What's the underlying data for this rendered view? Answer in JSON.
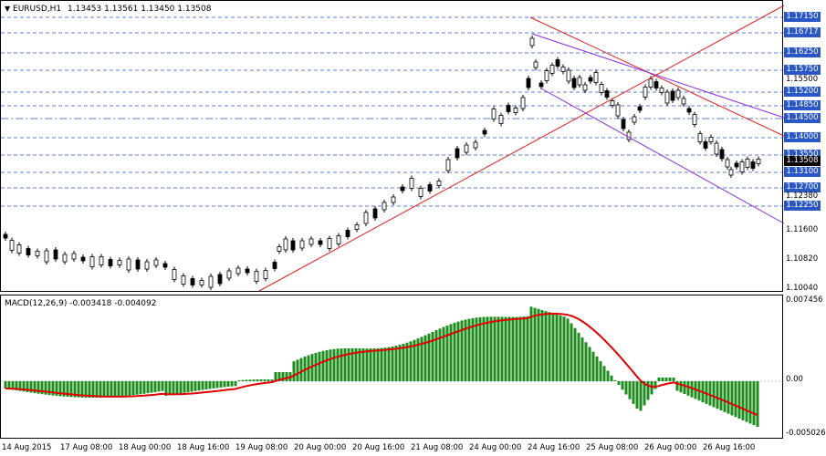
{
  "chart_title": {
    "symbol": "EURUSD,H1",
    "ohlc": "1.13453 1.13561 1.13450 1.13508"
  },
  "macd_title": "MACD(12,26,9) -0.003418 -0.004092",
  "price_axis_levels": [
    {
      "value": "1.17150",
      "label": true
    },
    {
      "value": "1.16717",
      "label": true
    },
    {
      "value": "1.16250",
      "label": true
    },
    {
      "value": "1.15750",
      "label": true
    },
    {
      "value": "1.15500",
      "label": false
    },
    {
      "value": "1.15200",
      "label": true
    },
    {
      "value": "1.14850",
      "label": true
    },
    {
      "value": "1.14500",
      "label": true
    },
    {
      "value": "1.14000",
      "label": true
    },
    {
      "value": "1.13550",
      "label": true
    },
    {
      "value": "1.13508",
      "label": true,
      "current": true
    },
    {
      "value": "1.13100",
      "label": true
    },
    {
      "value": "1.12700",
      "label": true
    },
    {
      "value": "1.12380",
      "label": false
    },
    {
      "value": "1.12250",
      "label": true
    },
    {
      "value": "1.11600",
      "label": false
    },
    {
      "value": "1.10820",
      "label": false
    },
    {
      "value": "1.10040",
      "label": false
    }
  ],
  "macd_axis": [
    "0.007456",
    "0.00",
    "-0.005026"
  ],
  "time_labels": [
    "14 Aug 2015",
    "17 Aug 08:00",
    "18 Aug 00:00",
    "18 Aug 16:00",
    "19 Aug 08:00",
    "20 Aug 00:00",
    "20 Aug 16:00",
    "21 Aug 08:00",
    "24 Aug 00:00",
    "24 Aug 16:00",
    "25 Aug 08:00",
    "26 Aug 00:00",
    "26 Aug 16:00"
  ],
  "colors": {
    "candle": "#000000",
    "level_line": "#2a56c6",
    "trend_red": "#e02020",
    "channel_purple": "#8a2be2",
    "macd_hist": "#1e8c1e",
    "macd_signal": "#e00000"
  },
  "icons": {
    "dropdown": "triangle-down-icon"
  }
}
